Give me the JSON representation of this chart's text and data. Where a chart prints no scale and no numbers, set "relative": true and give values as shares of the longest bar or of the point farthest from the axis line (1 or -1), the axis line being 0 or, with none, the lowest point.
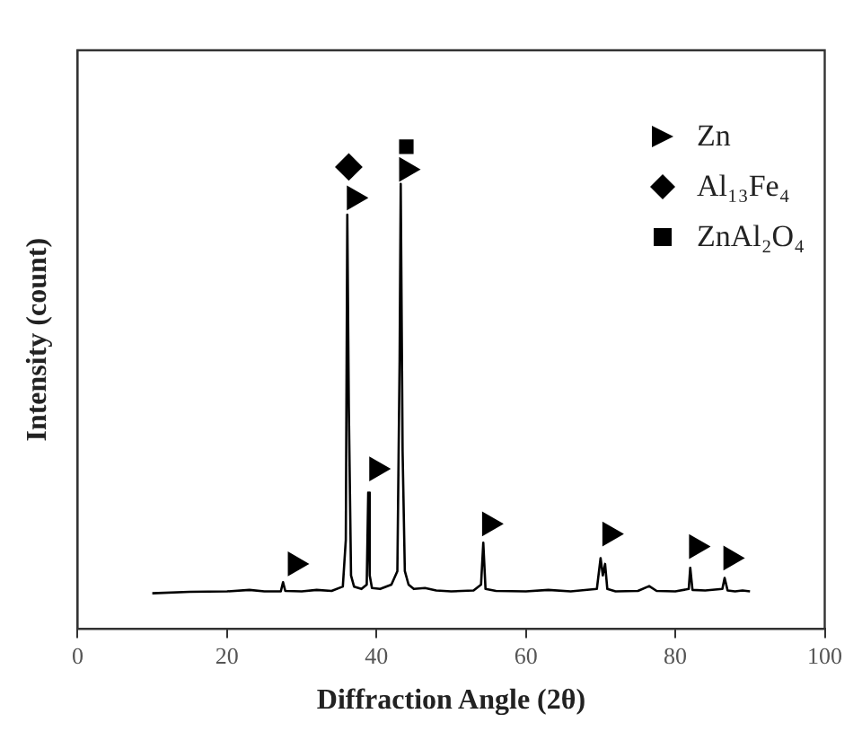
{
  "chart_data": {
    "type": "line",
    "relative": true,
    "xlabel": "Diffraction Angle (2θ)",
    "ylabel": "Intensity (count)",
    "xlim": [
      0,
      100
    ],
    "xticks": [
      0,
      20,
      40,
      60,
      80,
      100
    ],
    "legend": "top right",
    "series": [
      {
        "color": "#000000",
        "marker": "none",
        "x": [
          10,
          15,
          20,
          23,
          25,
          27.2,
          27.5,
          27.8,
          30,
          32,
          34,
          35.5,
          35.9,
          36.1,
          36.3,
          36.6,
          37,
          38,
          38.7,
          38.9,
          39.1,
          39.4,
          40.5,
          42,
          42.8,
          43.1,
          43.25,
          43.5,
          43.8,
          44.3,
          45,
          46.5,
          48,
          50,
          53,
          54,
          54.3,
          54.6,
          56,
          60,
          63,
          66,
          69.5,
          70,
          70.3,
          70.6,
          70.9,
          72,
          75,
          76.5,
          77.5,
          80,
          81.8,
          82,
          82.3,
          84,
          86.3,
          86.6,
          87,
          88,
          89,
          90
        ],
        "values": [
          0.074,
          0.077,
          0.078,
          0.081,
          0.078,
          0.078,
          0.097,
          0.079,
          0.078,
          0.081,
          0.079,
          0.088,
          0.185,
          0.859,
          0.462,
          0.111,
          0.088,
          0.083,
          0.092,
          0.283,
          0.111,
          0.085,
          0.083,
          0.092,
          0.12,
          0.554,
          0.923,
          0.369,
          0.12,
          0.092,
          0.083,
          0.085,
          0.08,
          0.078,
          0.08,
          0.092,
          0.179,
          0.083,
          0.079,
          0.078,
          0.081,
          0.078,
          0.083,
          0.147,
          0.111,
          0.135,
          0.083,
          0.078,
          0.079,
          0.089,
          0.079,
          0.078,
          0.083,
          0.127,
          0.081,
          0.08,
          0.083,
          0.106,
          0.08,
          0.078,
          0.08,
          0.078
        ]
      },
      {
        "type": "scatter",
        "name": "Zn",
        "color": "#000000",
        "marker": "triangle",
        "x": [
          29.1,
          37,
          40,
          44,
          55.1,
          71.2,
          82.8,
          87.4
        ],
        "values": [
          0.135,
          0.894,
          0.332,
          0.953,
          0.218,
          0.197,
          0.171,
          0.147
        ]
      },
      {
        "type": "scatter",
        "name": "Al₁₃Fe₄",
        "color": "#000000",
        "marker": "diamond",
        "x": [
          36.3
        ],
        "values": [
          0.958
        ]
      },
      {
        "type": "scatter",
        "name": "ZnAl₂O₄",
        "color": "#000000",
        "marker": "square",
        "x": [
          44
        ],
        "values": [
          1
        ]
      }
    ]
  }
}
